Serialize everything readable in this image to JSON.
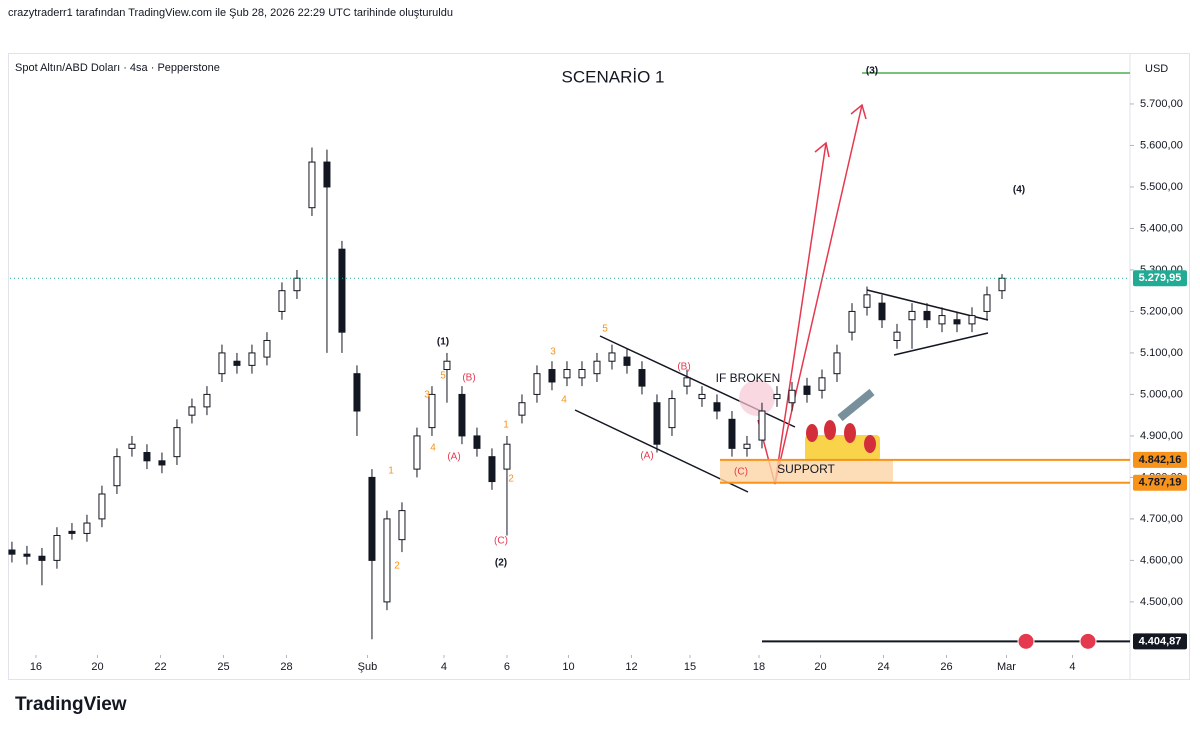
{
  "header": "crazytraderr1 tarafından TradingView.com ile Şub 28, 2026 22:29 UTC tarihinde oluşturuldu",
  "footer": "TradingView",
  "chart_data": {
    "type": "candlestick",
    "title": "SCENARİO 1",
    "subtitle": "Spot Altın/ABD Doları · 4sa · Pepperstone",
    "currency": "USD",
    "up_color": "#ffffff",
    "down_color": "#131722",
    "outline_color": "#131722",
    "xlim": [
      -0.13,
      74.4
    ],
    "ylim": [
      4372,
      5818
    ],
    "yticks": [
      {
        "value": 4500,
        "label": "4.500,00"
      },
      {
        "value": 4600,
        "label": "4.600,00"
      },
      {
        "value": 4700,
        "label": "4.700,00"
      },
      {
        "value": 4800,
        "label": "4.800,00"
      },
      {
        "value": 4900,
        "label": "4.900,00"
      },
      {
        "value": 5000,
        "label": "5.000,00"
      },
      {
        "value": 5100,
        "label": "5.100,00"
      },
      {
        "value": 5200,
        "label": "5.200,00"
      },
      {
        "value": 5300,
        "label": "5.300,00"
      },
      {
        "value": 5400,
        "label": "5.400,00"
      },
      {
        "value": 5500,
        "label": "5.500,00"
      },
      {
        "value": 5600,
        "label": "5.600,00"
      },
      {
        "value": 5700,
        "label": "5.700,00"
      }
    ],
    "xticks": [
      {
        "value": 1.6,
        "label": "16"
      },
      {
        "value": 5.7,
        "label": "20"
      },
      {
        "value": 9.9,
        "label": "22"
      },
      {
        "value": 14.1,
        "label": "25"
      },
      {
        "value": 18.3,
        "label": "28"
      },
      {
        "value": 23.7,
        "label": "Şub"
      },
      {
        "value": 28.8,
        "label": "4"
      },
      {
        "value": 33,
        "label": "6"
      },
      {
        "value": 37.1,
        "label": "10"
      },
      {
        "value": 41.3,
        "label": "12"
      },
      {
        "value": 45.2,
        "label": "15"
      },
      {
        "value": 49.8,
        "label": "18"
      },
      {
        "value": 53.9,
        "label": "20"
      },
      {
        "value": 58.1,
        "label": "24"
      },
      {
        "value": 62.3,
        "label": "26"
      },
      {
        "value": 66.3,
        "label": "Mar"
      },
      {
        "value": 70.7,
        "label": "4"
      }
    ],
    "open": [
      4625,
      4615,
      4610,
      4600,
      4670,
      4665,
      4700,
      4780,
      4870,
      4860,
      4840,
      4850,
      4950,
      4970,
      5050,
      5080,
      5070,
      5090,
      5200,
      5250,
      5450,
      5560,
      5350,
      5050,
      4800,
      4500,
      4650,
      4820,
      4920,
      5060,
      5000,
      4900,
      4850,
      4820,
      4950,
      5000,
      5060,
      5040,
      5040,
      5050,
      5080,
      5090,
      5060,
      4980,
      4920,
      5020,
      4990,
      4980,
      4940,
      4870,
      4890,
      4990,
      4980,
      5020,
      5010,
      5050,
      5150,
      5210,
      5220,
      5130,
      5180,
      5200,
      5170,
      5180,
      5170,
      5200,
      5250
    ],
    "high": [
      4645,
      4635,
      4630,
      4680,
      4690,
      4710,
      4780,
      4870,
      4900,
      4880,
      4860,
      4940,
      4990,
      5020,
      5120,
      5100,
      5120,
      5150,
      5270,
      5300,
      5595,
      5590,
      5370,
      5070,
      4820,
      4720,
      4740,
      4920,
      5020,
      5100,
      5020,
      4920,
      4870,
      4900,
      5000,
      5070,
      5080,
      5080,
      5080,
      5100,
      5120,
      5110,
      5080,
      5000,
      5010,
      5060,
      5020,
      5000,
      4960,
      4900,
      4980,
      5020,
      5030,
      5040,
      5060,
      5120,
      5220,
      5260,
      5240,
      5170,
      5220,
      5220,
      5210,
      5200,
      5210,
      5260,
      5290
    ],
    "low": [
      4595,
      4590,
      4540,
      4580,
      4650,
      4645,
      4680,
      4760,
      4850,
      4820,
      4810,
      4830,
      4930,
      4950,
      5030,
      5050,
      5050,
      5070,
      5180,
      5230,
      5430,
      5100,
      5100,
      4900,
      4410,
      4480,
      4620,
      4800,
      4900,
      4980,
      4880,
      4850,
      4770,
      4660,
      4930,
      4980,
      5010,
      5020,
      5020,
      5030,
      5060,
      5050,
      5000,
      4860,
      4900,
      5000,
      4970,
      4940,
      4850,
      4850,
      4870,
      4970,
      4960,
      4980,
      4990,
      5030,
      5130,
      5190,
      5160,
      5110,
      5110,
      5160,
      5150,
      5150,
      5150,
      5180,
      5230
    ],
    "close": [
      4615,
      4610,
      4600,
      4660,
      4665,
      4690,
      4760,
      4850,
      4880,
      4840,
      4830,
      4920,
      4970,
      5000,
      5100,
      5070,
      5100,
      5130,
      5250,
      5280,
      5560,
      5500,
      5150,
      4960,
      4600,
      4700,
      4720,
      4900,
      5000,
      5080,
      4900,
      4870,
      4790,
      4880,
      4980,
      5050,
      5030,
      5060,
      5060,
      5080,
      5100,
      5070,
      5020,
      4880,
      4990,
      5040,
      5000,
      4960,
      4870,
      4880,
      4960,
      5000,
      5010,
      5000,
      5040,
      5100,
      5200,
      5240,
      5180,
      5150,
      5200,
      5180,
      5190,
      5170,
      5190,
      5240,
      5279.95
    ],
    "price_lines": [
      {
        "value": 5279.95,
        "label": "5.279,95",
        "color": "#22ab94"
      },
      {
        "value": 4842.16,
        "label": "4.842,16",
        "color": "#f7931a"
      },
      {
        "value": 4787.19,
        "label": "4.787,19",
        "color": "#f7931a"
      },
      {
        "value": 4404.87,
        "label": "4.404,87",
        "color": "#131722"
      }
    ],
    "annotations": [
      "(1)",
      "(2)",
      "(3)",
      "(4)",
      "(A)",
      "(B)",
      "(C)",
      "(A)",
      "(B)",
      "(C)",
      "1",
      "2",
      "3",
      "4",
      "5",
      "1",
      "2",
      "3",
      "4",
      "5",
      "IF BROKEN",
      "SUPPORT"
    ]
  }
}
